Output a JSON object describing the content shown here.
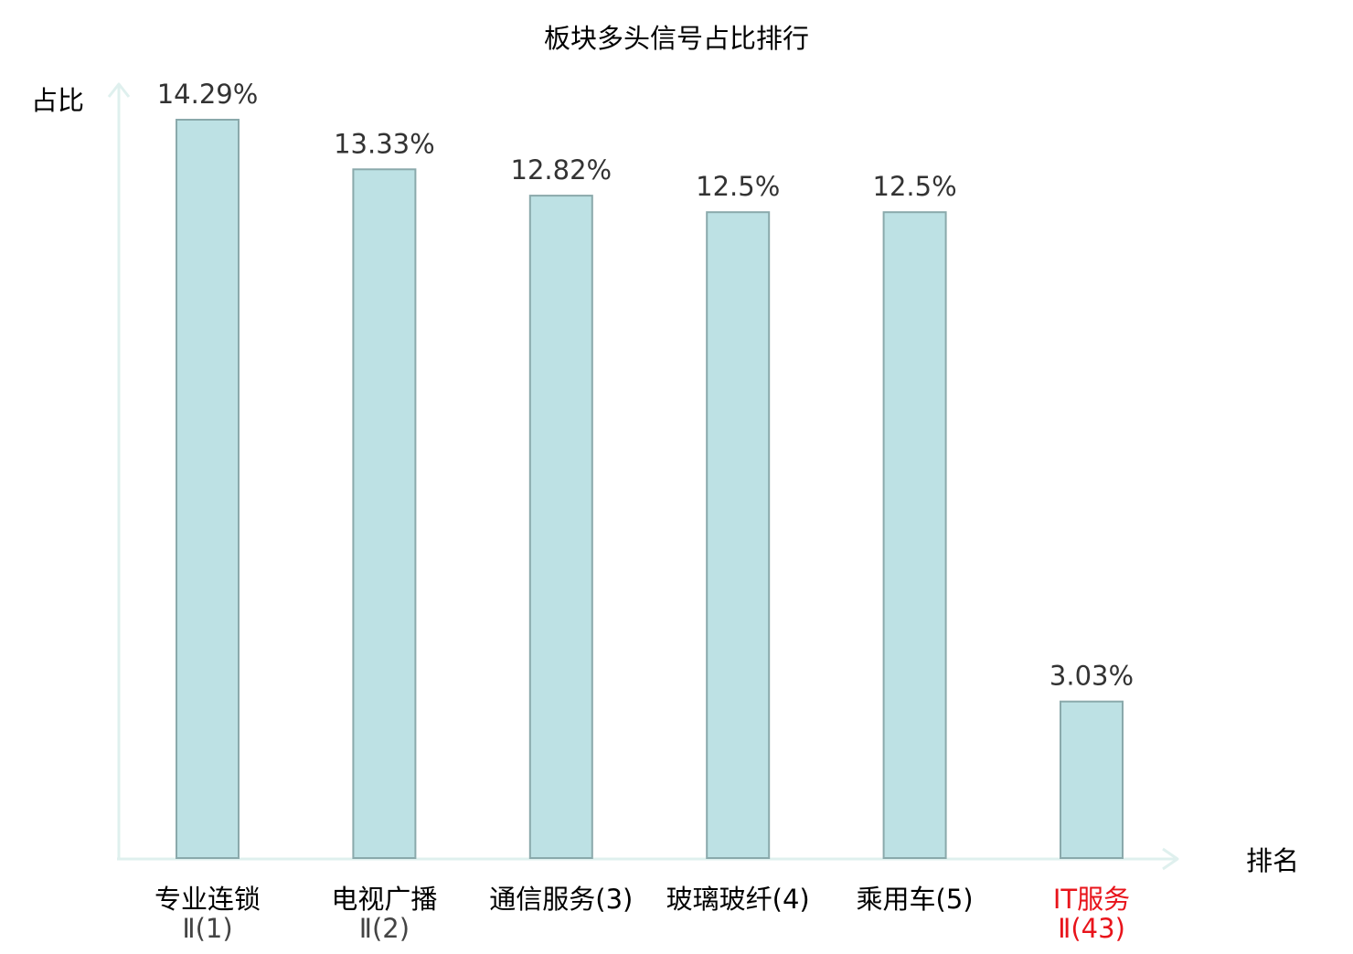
{
  "chart_data": {
    "type": "bar",
    "title": "板块多头信号占比排行",
    "ylabel": "占比",
    "xlabel": "排名",
    "ylim": [
      0,
      14.29
    ],
    "grid": false,
    "legend": "none",
    "categories": [
      [
        "专业连锁",
        "Ⅱ(1)"
      ],
      [
        "电视广播",
        "Ⅱ(2)"
      ],
      [
        "通信服务(3)"
      ],
      [
        "玻璃玻纤(4)"
      ],
      [
        "乘用车(5)"
      ],
      [
        "IT服务",
        "Ⅱ(43)"
      ]
    ],
    "values": [
      14.29,
      13.33,
      12.82,
      12.5,
      12.5,
      3.03
    ],
    "data_labels": [
      "14.29%",
      "13.33%",
      "12.82%",
      "12.5%",
      "12.5%",
      "3.03%"
    ],
    "highlight_index": 5,
    "colors": {
      "bar_fill": "#bde1e4",
      "bar_stroke": "#8aa9ab",
      "axis": "#dff0ee",
      "label_text": "#333333",
      "category_text": "#000000",
      "category_subtext": "#444444",
      "highlight_text": "#e8141b"
    }
  }
}
